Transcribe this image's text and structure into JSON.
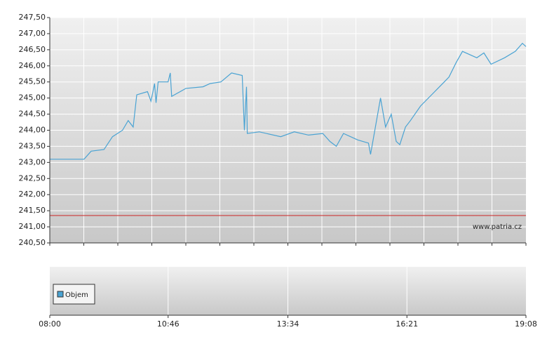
{
  "chart_data": {
    "type": "line",
    "color": "#4aa3d3",
    "x": [
      "08:00",
      "08:48",
      "08:58",
      "09:16",
      "09:28",
      "09:42",
      "09:50",
      "09:57",
      "10:02",
      "10:17",
      "10:22",
      "10:27",
      "10:29",
      "10:32",
      "10:46",
      "10:49",
      "10:51",
      "11:11",
      "11:35",
      "11:45",
      "12:00",
      "12:15",
      "12:30",
      "12:33",
      "12:36",
      "12:37",
      "12:54",
      "13:24",
      "13:43",
      "14:03",
      "14:23",
      "14:33",
      "14:42",
      "14:52",
      "15:12",
      "15:27",
      "15:30",
      "15:36",
      "15:44",
      "15:51",
      "15:59",
      "16:06",
      "16:11",
      "16:19",
      "16:26",
      "16:40",
      "17:00",
      "17:20",
      "17:30",
      "17:39",
      "17:59",
      "18:09",
      "18:19",
      "18:38",
      "18:53",
      "19:03",
      "19:08"
    ],
    "values": [
      243.1,
      243.1,
      243.35,
      243.4,
      243.8,
      244.0,
      244.3,
      244.1,
      245.1,
      245.2,
      244.9,
      245.45,
      244.85,
      245.5,
      245.5,
      245.78,
      245.05,
      245.3,
      245.35,
      245.45,
      245.5,
      245.78,
      245.7,
      244.0,
      245.35,
      243.9,
      243.95,
      243.8,
      243.95,
      243.85,
      243.9,
      243.65,
      243.5,
      243.9,
      243.7,
      243.6,
      243.25,
      244.0,
      245.0,
      244.1,
      244.5,
      243.65,
      243.55,
      244.1,
      244.3,
      244.75,
      245.2,
      245.65,
      246.1,
      246.45,
      246.25,
      246.4,
      246.05,
      246.25,
      246.45,
      246.7,
      246.6
    ],
    "xlim": [
      "08:00",
      "19:08"
    ],
    "xticks": [
      "08:00",
      "10:46",
      "13:34",
      "16:21",
      "19:08"
    ],
    "ylim": [
      240.5,
      247.5
    ],
    "yticks": [
      {
        "value": 240.5,
        "label": "240,50"
      },
      {
        "value": 241,
        "label": "241,00"
      },
      {
        "value": 241.5,
        "label": "241,50"
      },
      {
        "value": 242,
        "label": "242,00"
      },
      {
        "value": 242.5,
        "label": "242,50"
      },
      {
        "value": 243,
        "label": "243,00"
      },
      {
        "value": 243.5,
        "label": "243,50"
      },
      {
        "value": 244,
        "label": "244,00"
      },
      {
        "value": 244.5,
        "label": "244,50"
      },
      {
        "value": 245,
        "label": "245,00"
      },
      {
        "value": 245.5,
        "label": "245,50"
      },
      {
        "value": 246,
        "label": "246,00"
      },
      {
        "value": 246.5,
        "label": "246,50"
      },
      {
        "value": 247,
        "label": "247,00"
      },
      {
        "value": 247.5,
        "label": "247,50"
      }
    ],
    "grid": true,
    "reference_line": {
      "value": 241.35,
      "color": "#cc2222"
    },
    "watermark": "www.patria.cz",
    "volume_legend": {
      "name": "Objem",
      "color": "#4aa3d3"
    }
  }
}
